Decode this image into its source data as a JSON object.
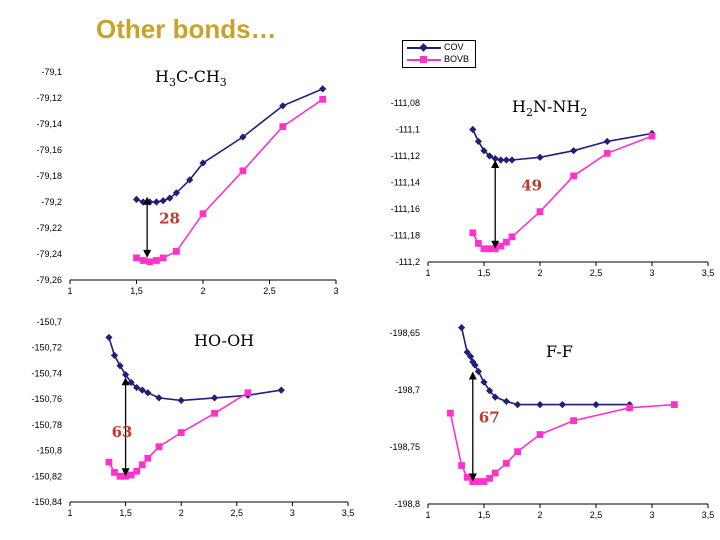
{
  "title": "Other bonds…",
  "legend": {
    "items": [
      {
        "name": "COV",
        "color": "#1f1f7a",
        "marker": "diamond"
      },
      {
        "name": "BOVB",
        "color": "#ff33cc",
        "marker": "square"
      }
    ]
  },
  "chart_data": [
    {
      "type": "line",
      "title_parts": [
        "H",
        "3",
        "C-CH",
        "3"
      ],
      "x_ticks": [
        "1",
        "1,5",
        "2",
        "2,5",
        "3"
      ],
      "y_ticks": [
        "-79,1",
        "-79,12",
        "-79,14",
        "-79,16",
        "-79,18",
        "-79,2",
        "-79,22",
        "-79,24",
        "-79,26"
      ],
      "xlim": [
        1,
        3
      ],
      "ylim": [
        -79.26,
        -79.1
      ],
      "energy_label": "28",
      "arrow": {
        "x": 1.58,
        "from": -79.196,
        "to": -79.243
      },
      "series": [
        {
          "name": "COV",
          "x": [
            1.5,
            1.55,
            1.6,
            1.65,
            1.7,
            1.75,
            1.8,
            1.9,
            2.0,
            2.3,
            2.6,
            2.9
          ],
          "y": [
            -79.198,
            -79.2,
            -79.2,
            -79.2,
            -79.199,
            -79.197,
            -79.193,
            -79.183,
            -79.17,
            -79.15,
            -79.126,
            -79.113
          ]
        },
        {
          "name": "BOVB",
          "x": [
            1.5,
            1.55,
            1.6,
            1.65,
            1.7,
            1.8,
            2.0,
            2.3,
            2.6,
            2.9
          ],
          "y": [
            -79.243,
            -79.245,
            -79.246,
            -79.245,
            -79.243,
            -79.238,
            -79.209,
            -79.176,
            -79.142,
            -79.121
          ]
        }
      ]
    },
    {
      "type": "line",
      "title_parts": [
        "H",
        "2",
        "N-NH",
        "2"
      ],
      "x_ticks": [
        "1",
        "1,5",
        "2",
        "2,5",
        "3",
        "3,5"
      ],
      "y_ticks": [
        "-111,08",
        "-111,1",
        "-111,12",
        "-111,14",
        "-111,16",
        "-111,18",
        "-111,2"
      ],
      "xlim": [
        1,
        3.5
      ],
      "ylim": [
        -111.2,
        -111.08
      ],
      "energy_label": "49",
      "arrow": {
        "x": 1.6,
        "from": -111.123,
        "to": -111.19
      },
      "series": [
        {
          "name": "COV",
          "x": [
            1.4,
            1.45,
            1.5,
            1.55,
            1.6,
            1.65,
            1.7,
            1.75,
            2.0,
            2.3,
            2.6,
            3.0
          ],
          "y": [
            -111.1,
            -111.109,
            -111.116,
            -111.12,
            -111.122,
            -111.123,
            -111.123,
            -111.123,
            -111.121,
            -111.116,
            -111.109,
            -111.103
          ]
        },
        {
          "name": "BOVB",
          "x": [
            1.4,
            1.45,
            1.5,
            1.55,
            1.6,
            1.65,
            1.7,
            1.75,
            2.0,
            2.3,
            2.6,
            3.0
          ],
          "y": [
            -111.178,
            -111.186,
            -111.19,
            -111.19,
            -111.19,
            -111.188,
            -111.185,
            -111.181,
            -111.162,
            -111.135,
            -111.118,
            -111.105
          ]
        }
      ]
    },
    {
      "type": "line",
      "title_parts": [
        "HO-OH"
      ],
      "x_ticks": [
        "1",
        "1,5",
        "2",
        "2,5",
        "3",
        "3,5"
      ],
      "y_ticks": [
        "-150,7",
        "-150,72",
        "-150,74",
        "-150,76",
        "-150,78",
        "-150,8",
        "-150,82",
        "-150,84"
      ],
      "xlim": [
        1,
        3.5
      ],
      "ylim": [
        -150.84,
        -150.7
      ],
      "energy_label": "63",
      "arrow": {
        "x": 1.5,
        "from": -150.743,
        "to": -150.82
      },
      "series": [
        {
          "name": "COV",
          "x": [
            1.35,
            1.4,
            1.45,
            1.5,
            1.55,
            1.6,
            1.65,
            1.7,
            1.8,
            2.0,
            2.3,
            2.6,
            2.9
          ],
          "y": [
            -150.712,
            -150.726,
            -150.734,
            -150.741,
            -150.747,
            -150.751,
            -150.753,
            -150.755,
            -150.759,
            -150.761,
            -150.759,
            -150.757,
            -150.753
          ]
        },
        {
          "name": "BOVB",
          "x": [
            1.35,
            1.4,
            1.45,
            1.5,
            1.55,
            1.6,
            1.65,
            1.7,
            1.8,
            2.0,
            2.3,
            2.6
          ],
          "y": [
            -150.809,
            -150.817,
            -150.82,
            -150.82,
            -150.819,
            -150.816,
            -150.811,
            -150.806,
            -150.797,
            -150.786,
            -150.771,
            -150.755
          ]
        }
      ]
    },
    {
      "type": "line",
      "title_parts": [
        "F-F"
      ],
      "x_ticks": [
        "1",
        "1,5",
        "2",
        "2,5",
        "3",
        "3,5"
      ],
      "y_ticks": [
        "-198,65",
        "-198,7",
        "-198,75",
        "-198,8"
      ],
      "xlim": [
        1,
        3.5
      ],
      "ylim": [
        -198.8,
        -198.64
      ],
      "energy_label": "67",
      "arrow": {
        "x": 1.4,
        "from": -198.676,
        "to": -198.779
      },
      "series": [
        {
          "name": "COV",
          "x": [
            1.3,
            1.35,
            1.38,
            1.4,
            1.42,
            1.45,
            1.5,
            1.55,
            1.6,
            1.7,
            1.8,
            2.0,
            2.2,
            2.5,
            2.8
          ],
          "y": [
            -198.635,
            -198.658,
            -198.662,
            -198.667,
            -198.67,
            -198.676,
            -198.686,
            -198.694,
            -198.7,
            -198.704,
            -198.707,
            -198.707,
            -198.707,
            -198.707,
            -198.707
          ]
        },
        {
          "name": "BOVB",
          "x": [
            1.2,
            1.3,
            1.35,
            1.4,
            1.45,
            1.5,
            1.55,
            1.6,
            1.7,
            1.8,
            2.0,
            2.3,
            2.8,
            3.2
          ],
          "y": [
            -198.715,
            -198.764,
            -198.775,
            -198.779,
            -198.779,
            -198.779,
            -198.776,
            -198.771,
            -198.762,
            -198.751,
            -198.735,
            -198.722,
            -198.71,
            -198.707
          ]
        }
      ]
    }
  ]
}
